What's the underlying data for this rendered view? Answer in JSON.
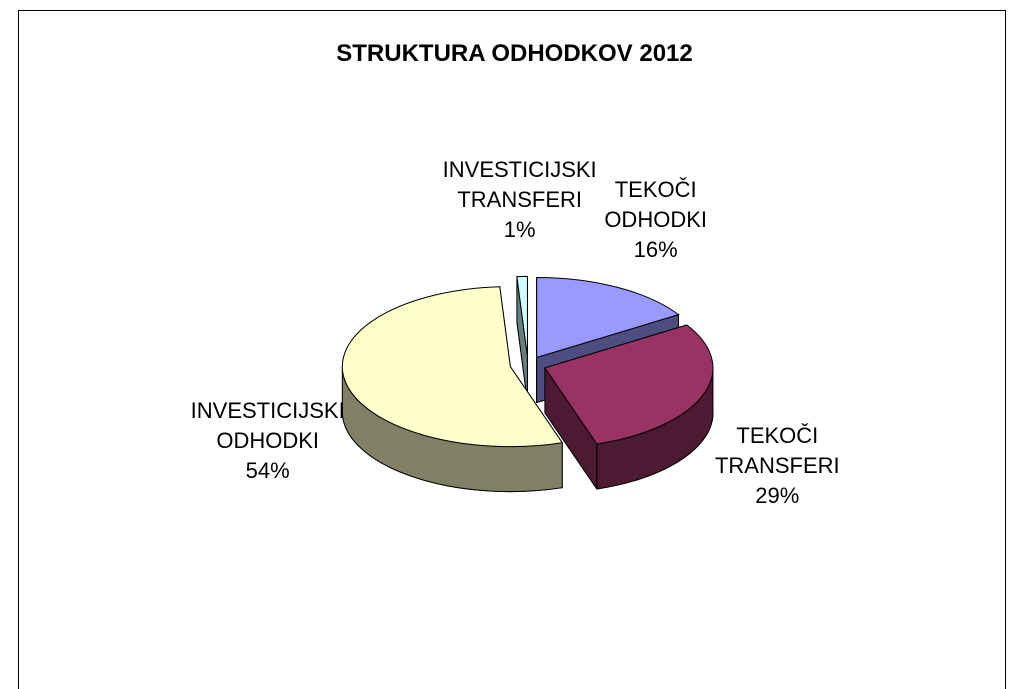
{
  "chart_data": {
    "type": "pie",
    "title": "STRUKTURA ODHODKOV 2012",
    "categories": [
      "TEKOČI ODHODKI",
      "TEKOČI TRANSFERI",
      "INVESTICIJSKI ODHODKI",
      "INVESTICIJSKI TRANSFERI"
    ],
    "values": [
      16,
      29,
      54,
      1
    ],
    "value_labels": [
      "16%",
      "29%",
      "54%",
      "1%"
    ],
    "colors": [
      "#9999ff",
      "#993366",
      "#ffffcc",
      "#ccffff"
    ]
  }
}
